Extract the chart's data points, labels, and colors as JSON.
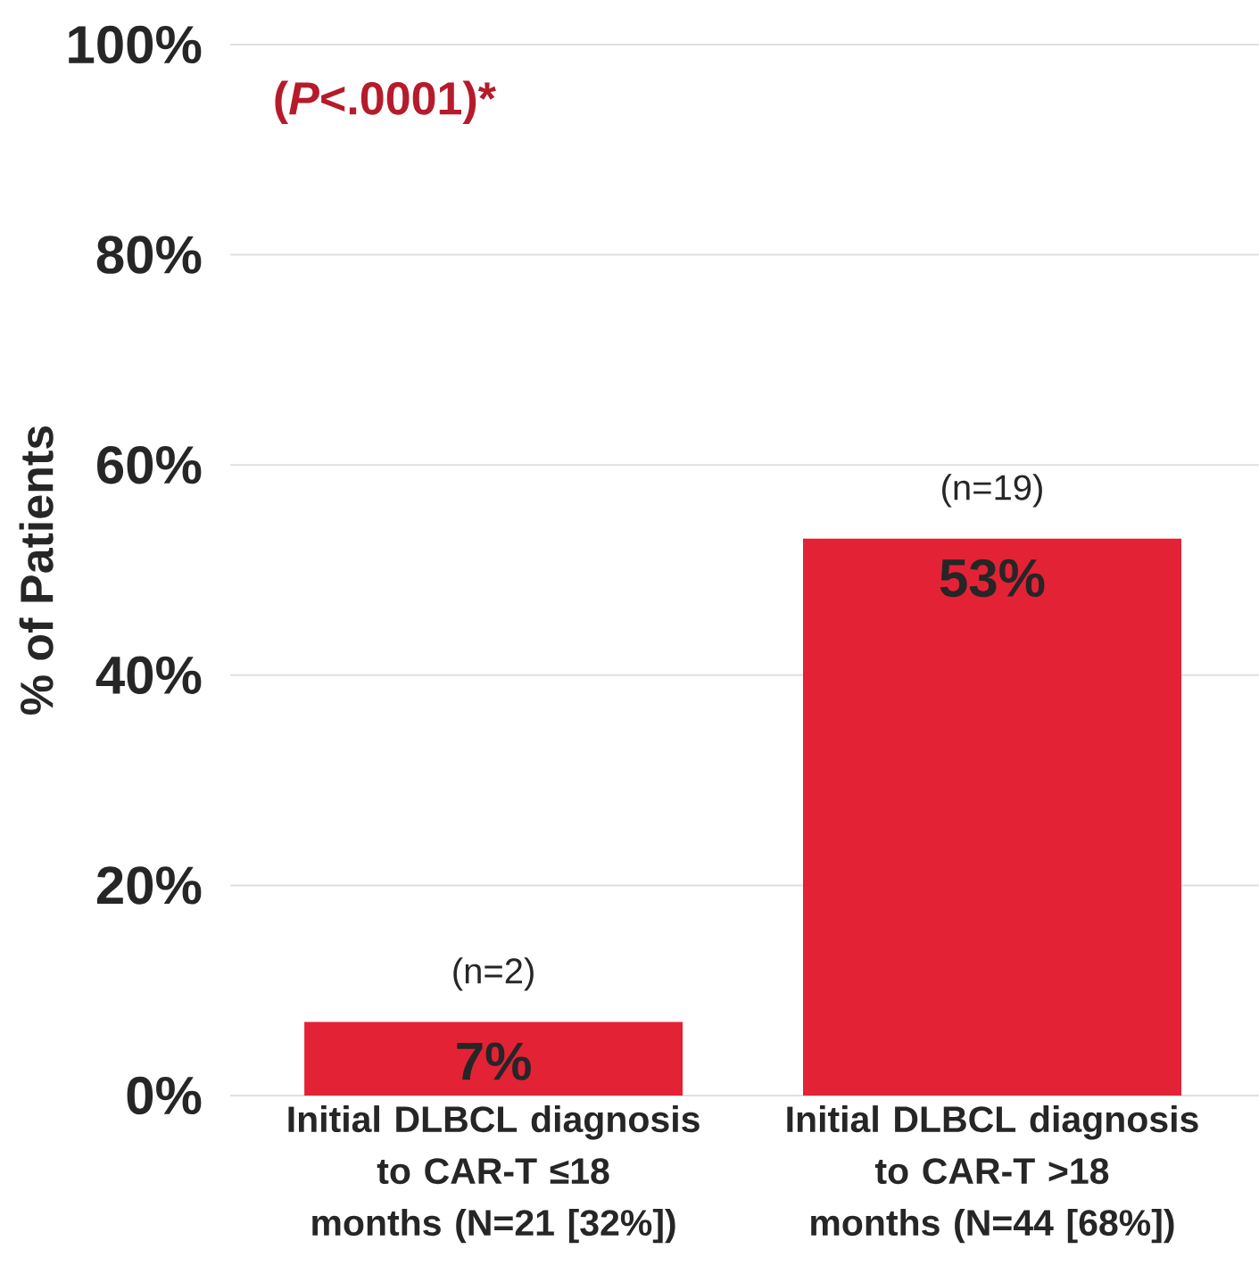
{
  "chart_data": {
    "type": "bar",
    "ylabel": "% of Patients",
    "categories": [
      "Initial DLBCL diagnosis to CAR-T ≤18 months (N=21 [32%])",
      "Initial DLBCL diagnosis to CAR-T >18 months (N=44 [68%])"
    ],
    "values": [
      7,
      53
    ],
    "value_labels": [
      "7%",
      "53%"
    ],
    "color": "#e32236",
    "ylim": [
      0,
      100
    ],
    "yticks": [
      {
        "value": 0,
        "label": "0%"
      },
      {
        "value": 20,
        "label": "20%"
      },
      {
        "value": 40,
        "label": "40%"
      },
      {
        "value": 60,
        "label": "60%"
      },
      {
        "value": 80,
        "label": "80%"
      },
      {
        "value": 100,
        "label": "100%"
      }
    ],
    "grid": "y",
    "annotations": [
      "(*P*<.0001)*",
      {
        "text": "(n=2)",
        "x": "Initial DLBCL diagnosis to CAR-T ≤18 months (N=21 [32%])",
        "y": 7
      },
      {
        "text": "(n=19)",
        "x": "Initial DLBCL diagnosis to CAR-T >18 months (N=44 [68%])",
        "y": 53
      }
    ]
  }
}
